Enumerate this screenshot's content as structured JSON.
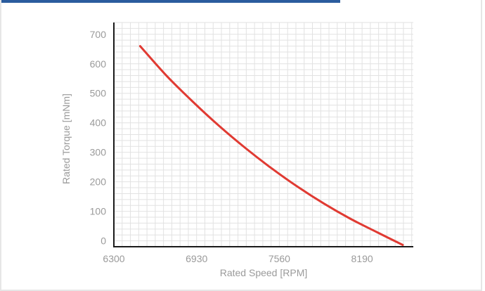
{
  "colors": {
    "accent_bar": "#2b5c9e",
    "curve": "#e03a32",
    "grid": "#e2e2e2",
    "axis": "#1a1a1a",
    "text": "#9a9a9a"
  },
  "chart_data": {
    "type": "line",
    "title": "",
    "xlabel": "Rated Speed [RPM]",
    "ylabel": "Rated Torque [mNm]",
    "xlim": [
      6300,
      8580
    ],
    "ylim": [
      -20,
      740
    ],
    "x_ticks": [
      6300,
      6930,
      7560,
      8190
    ],
    "y_ticks": [
      0,
      100,
      200,
      300,
      400,
      500,
      600,
      700
    ],
    "grid": true,
    "series": [
      {
        "name": "",
        "x": [
          6500,
          6700,
          6900,
          7100,
          7300,
          7500,
          7700,
          7900,
          8100,
          8300,
          8500
        ],
        "y": [
          660,
          560,
          472,
          390,
          315,
          246,
          183,
          126,
          75,
          30,
          -14
        ]
      }
    ]
  }
}
